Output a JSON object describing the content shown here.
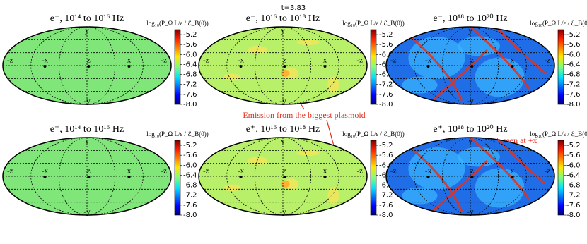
{
  "figure": {
    "title": "t=3.83",
    "panels": [
      {
        "title": "e⁻, 10¹⁴ to 10¹⁶ Hz"
      },
      {
        "title": "e⁻, 10¹⁶ to 10¹⁸ Hz"
      },
      {
        "title": "e⁻, 10¹⁸ to 10²⁰ Hz"
      },
      {
        "title": "e⁺, 10¹⁴ to 10¹⁶ Hz"
      },
      {
        "title": "e⁺, 10¹⁶ to 10¹⁸ Hz"
      },
      {
        "title": "e⁺, 10¹⁸ to 10²⁰ Hz"
      }
    ],
    "axis_labels": {
      "left": "-z",
      "minus_x": "-x",
      "center": "z",
      "x": "x",
      "right": "-z",
      "top": "y",
      "bottom": "-y"
    },
    "colorbar": {
      "label": "log₁₀(P_Ω L/ε / ℰ_B(0))",
      "clim": [
        -8.0,
        -5.0
      ],
      "ticks": [
        -5.2,
        -5.6,
        {
          "value": -6,
          "label": "-6.0"
        },
        -6.4,
        -6.8,
        -7.2,
        -7.6,
        {
          "value": -8,
          "label": "-8.0"
        }
      ]
    },
    "annotations": [
      {
        "text": "Emission from the biggest plasmoid"
      },
      {
        "text": "Peak seen at +x"
      }
    ]
  }
}
